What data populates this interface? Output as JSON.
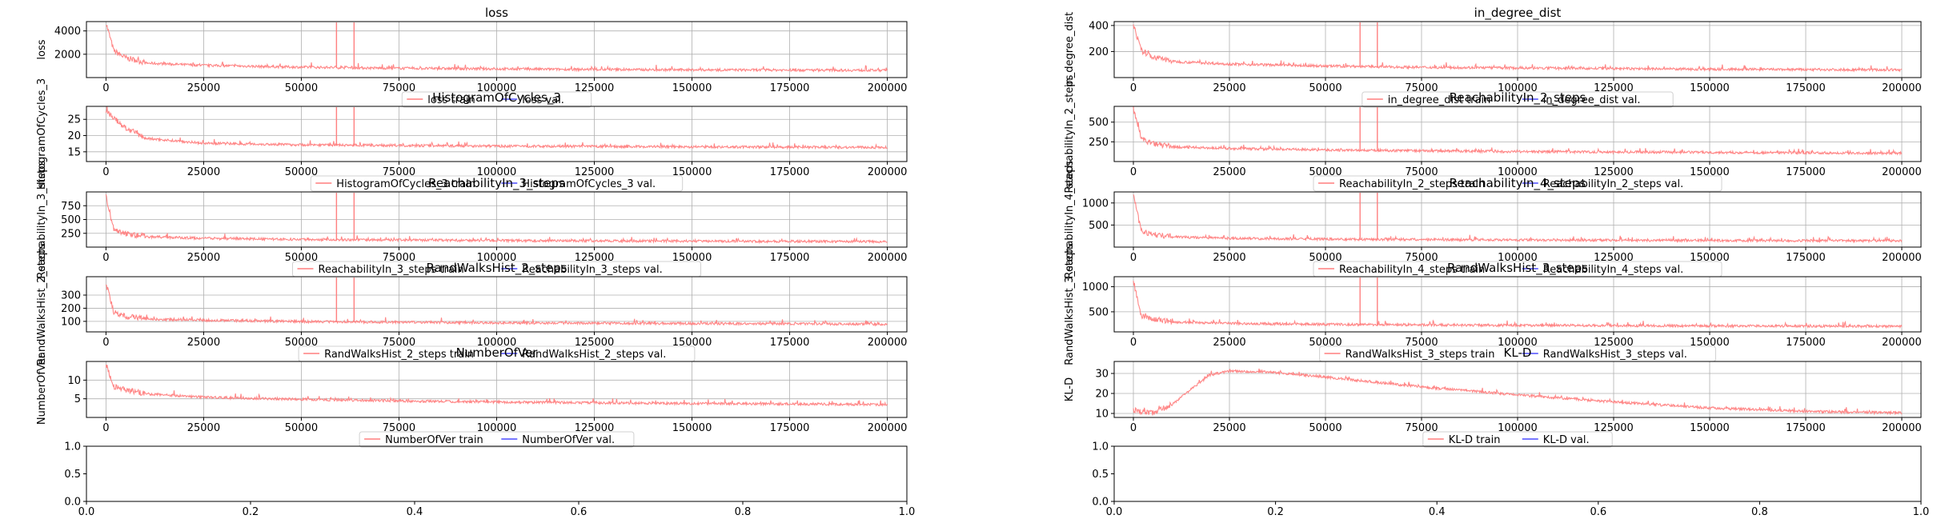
{
  "colors": {
    "train": "#ff7f7f",
    "val": "#4c4cff",
    "grid": "#b0b0b0",
    "frame": "#000000"
  },
  "x_ticks": [
    "0",
    "25000",
    "50000",
    "75000",
    "100000",
    "125000",
    "150000",
    "175000",
    "200000"
  ],
  "unit_ticks": [
    "0.0",
    "0.2",
    "0.4",
    "0.6",
    "0.8",
    "1.0"
  ],
  "chart_data": [
    {
      "type": "line",
      "title": "loss",
      "ylabel": "loss",
      "xlim": [
        -5000,
        205000
      ],
      "ylim": [
        0,
        4800
      ],
      "yticks": [
        2000,
        4000
      ],
      "grid": true,
      "legend": "bottom-center",
      "series": [
        {
          "name": "loss train",
          "x": [
            0,
            2000,
            5000,
            10000,
            25000,
            50000,
            75000,
            100000,
            125000,
            150000,
            175000,
            200000
          ],
          "y": [
            4600,
            2200,
            1600,
            1200,
            1000,
            850,
            750,
            700,
            650,
            620,
            600,
            580
          ]
        },
        {
          "name": "loss val.",
          "x": [],
          "y": []
        }
      ]
    },
    {
      "type": "line",
      "title": "in_degree_dist",
      "ylabel": "in_degree_dist",
      "xlim": [
        -5000,
        205000
      ],
      "ylim": [
        0,
        430
      ],
      "yticks": [
        200,
        400
      ],
      "grid": true,
      "legend": "bottom-center",
      "series": [
        {
          "name": "in_degree_dist train",
          "x": [
            0,
            2000,
            5000,
            10000,
            25000,
            50000,
            75000,
            100000,
            125000,
            150000,
            175000,
            200000
          ],
          "y": [
            400,
            200,
            150,
            120,
            100,
            85,
            75,
            70,
            65,
            60,
            58,
            55
          ]
        },
        {
          "name": "in_degree_dist val.",
          "x": [],
          "y": []
        }
      ]
    },
    {
      "type": "line",
      "title": "HistogramOfCycles_3",
      "ylabel": "HistogramOfCycles_3",
      "xlim": [
        -5000,
        205000
      ],
      "ylim": [
        12,
        29
      ],
      "yticks": [
        15,
        20,
        25
      ],
      "grid": true,
      "legend": "bottom-center",
      "series": [
        {
          "name": "HistogramOfCycles_3 train",
          "x": [
            0,
            2000,
            5000,
            10000,
            25000,
            50000,
            75000,
            100000,
            125000,
            150000,
            175000,
            200000
          ],
          "y": [
            27.5,
            25,
            22,
            19,
            17.5,
            17,
            16.8,
            16.6,
            16.5,
            16.4,
            16.3,
            16.2
          ]
        },
        {
          "name": "HistogramOfCycles_3 val.",
          "x": [],
          "y": []
        }
      ]
    },
    {
      "type": "line",
      "title": "ReachabilityIn_2_steps",
      "ylabel": "ReachabilityIn_2_steps",
      "xlim": [
        -5000,
        205000
      ],
      "ylim": [
        0,
        700
      ],
      "yticks": [
        250,
        500
      ],
      "grid": true,
      "legend": "bottom-center",
      "series": [
        {
          "name": "ReachabilityIn_2_steps train",
          "x": [
            0,
            2000,
            5000,
            10000,
            25000,
            50000,
            75000,
            100000,
            125000,
            150000,
            175000,
            200000
          ],
          "y": [
            650,
            280,
            210,
            180,
            160,
            140,
            130,
            120,
            115,
            110,
            105,
            100
          ]
        },
        {
          "name": "ReachabilityIn_2_steps val.",
          "x": [],
          "y": []
        }
      ]
    },
    {
      "type": "line",
      "title": "ReachabilityIn_3_steps",
      "ylabel": "ReachabilityIn_3_steps",
      "xlim": [
        -5000,
        205000
      ],
      "ylim": [
        0,
        1000
      ],
      "yticks": [
        250,
        500,
        750
      ],
      "grid": true,
      "legend": "bottom-center",
      "series": [
        {
          "name": "ReachabilityIn_3_steps train",
          "x": [
            0,
            2000,
            5000,
            10000,
            25000,
            50000,
            75000,
            100000,
            125000,
            150000,
            175000,
            200000
          ],
          "y": [
            900,
            300,
            220,
            180,
            150,
            130,
            120,
            110,
            105,
            100,
            95,
            90
          ]
        },
        {
          "name": "ReachabilityIn_3_steps val.",
          "x": [],
          "y": []
        }
      ]
    },
    {
      "type": "line",
      "title": "ReachabilityIn_4_steps",
      "ylabel": "ReachabilityIn_4_steps",
      "xlim": [
        -5000,
        205000
      ],
      "ylim": [
        0,
        1250
      ],
      "yticks": [
        500,
        1000
      ],
      "grid": true,
      "legend": "bottom-center",
      "series": [
        {
          "name": "ReachabilityIn_4_steps train",
          "x": [
            0,
            2000,
            5000,
            10000,
            25000,
            50000,
            75000,
            100000,
            125000,
            150000,
            175000,
            200000
          ],
          "y": [
            1150,
            350,
            260,
            220,
            190,
            170,
            160,
            150,
            145,
            140,
            135,
            130
          ]
        },
        {
          "name": "ReachabilityIn_4_steps val.",
          "x": [],
          "y": []
        }
      ]
    },
    {
      "type": "line",
      "title": "RandWalksHist_2_steps",
      "ylabel": "RandWalksHist_2_steps",
      "xlim": [
        -5000,
        205000
      ],
      "ylim": [
        20,
        440
      ],
      "yticks": [
        100,
        200,
        300
      ],
      "grid": true,
      "legend": "bottom-center",
      "series": [
        {
          "name": "RandWalksHist_2_steps train",
          "x": [
            0,
            2000,
            5000,
            10000,
            25000,
            50000,
            75000,
            100000,
            125000,
            150000,
            175000,
            200000
          ],
          "y": [
            380,
            160,
            130,
            115,
            105,
            95,
            90,
            85,
            82,
            80,
            78,
            75
          ]
        },
        {
          "name": "RandWalksHist_2_steps val.",
          "x": [],
          "y": []
        }
      ]
    },
    {
      "type": "line",
      "title": "RandWalksHist_3_steps",
      "ylabel": "RandWalksHist_3_steps",
      "xlim": [
        -5000,
        205000
      ],
      "ylim": [
        100,
        1200
      ],
      "yticks": [
        500,
        1000
      ],
      "grid": true,
      "legend": "bottom-center",
      "series": [
        {
          "name": "RandWalksHist_3_steps train",
          "x": [
            0,
            2000,
            5000,
            10000,
            25000,
            50000,
            75000,
            100000,
            125000,
            150000,
            175000,
            200000
          ],
          "y": [
            1100,
            400,
            330,
            290,
            260,
            240,
            230,
            220,
            215,
            210,
            205,
            200
          ]
        },
        {
          "name": "RandWalksHist_3_steps val.",
          "x": [],
          "y": []
        }
      ]
    },
    {
      "type": "line",
      "title": "NumberOfVer",
      "ylabel": "NumberOfVer",
      "xlim": [
        -5000,
        205000
      ],
      "ylim": [
        0,
        15
      ],
      "yticks": [
        5,
        10
      ],
      "grid": true,
      "legend": "bottom-center",
      "series": [
        {
          "name": "NumberOfVer train",
          "x": [
            0,
            2000,
            5000,
            10000,
            25000,
            50000,
            75000,
            100000,
            125000,
            150000,
            175000,
            200000
          ],
          "y": [
            14,
            8,
            7,
            6.2,
            5.3,
            4.7,
            4.3,
            4.0,
            3.8,
            3.6,
            3.5,
            3.3
          ]
        },
        {
          "name": "NumberOfVer val.",
          "x": [],
          "y": []
        }
      ]
    },
    {
      "type": "line",
      "title": "KL-D",
      "ylabel": "KL-D",
      "xlim": [
        -5000,
        205000
      ],
      "ylim": [
        8,
        36
      ],
      "yticks": [
        10,
        20,
        30
      ],
      "grid": true,
      "legend": "bottom-center",
      "series": [
        {
          "name": "KL-D train",
          "x": [
            0,
            5000,
            10000,
            15000,
            20000,
            25000,
            35000,
            50000,
            75000,
            100000,
            125000,
            150000,
            175000,
            200000
          ],
          "y": [
            11,
            9.5,
            14,
            22,
            29,
            31,
            30.5,
            28,
            23,
            19,
            15.5,
            12.5,
            10.8,
            10
          ]
        },
        {
          "name": "KL-D val.",
          "x": [],
          "y": []
        }
      ]
    },
    {
      "type": "line",
      "title": "",
      "xlim": [
        0,
        1
      ],
      "ylim": [
        0,
        1
      ],
      "series": []
    },
    {
      "type": "line",
      "title": "",
      "xlim": [
        0,
        1
      ],
      "ylim": [
        0,
        1
      ],
      "series": []
    }
  ]
}
